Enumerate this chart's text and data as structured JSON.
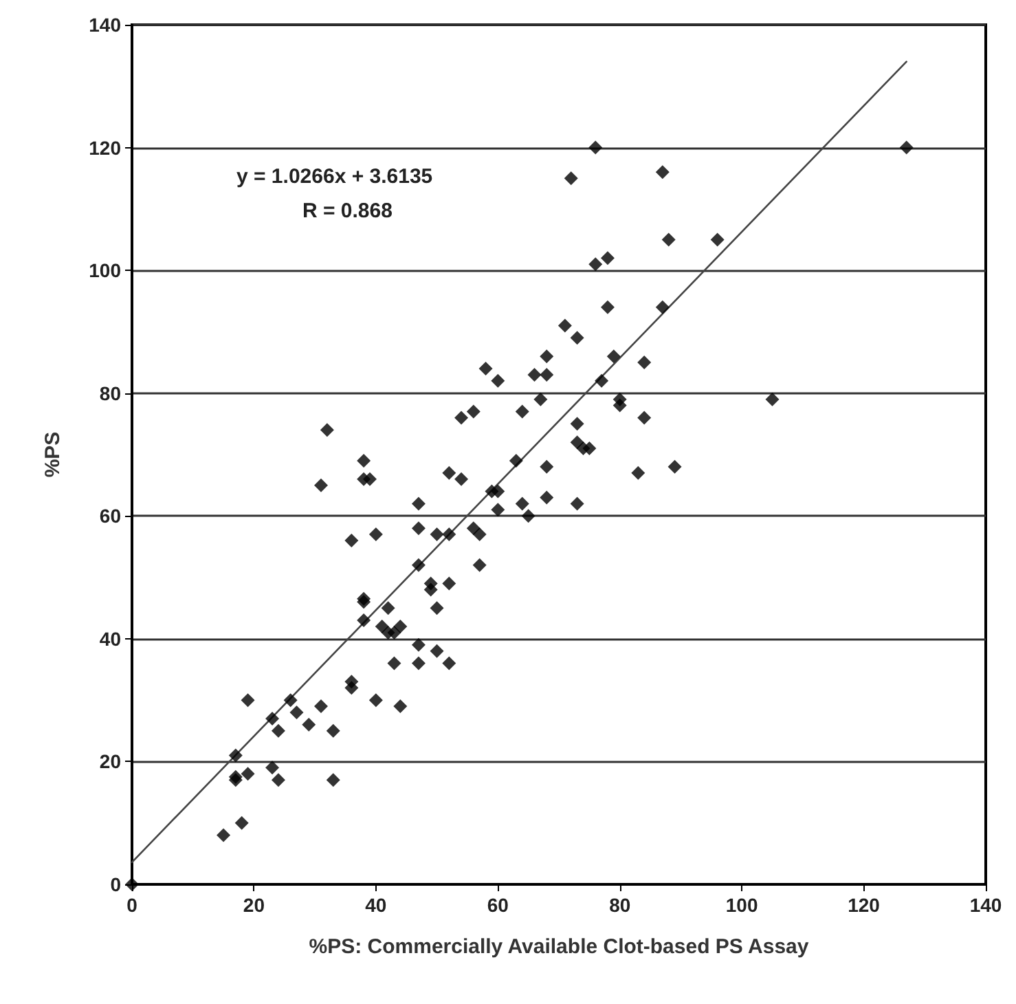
{
  "chart_data": {
    "type": "scatter",
    "xlabel": "%PS: Commercially Available Clot-based PS Assay",
    "ylabel": "%PS",
    "annotations": [
      "y = 1.0266x + 3.6135",
      "R = 0.868"
    ],
    "xlim": [
      0,
      140
    ],
    "xticks": [
      0,
      20,
      40,
      60,
      80,
      100,
      120,
      140
    ],
    "ylim": [
      0,
      140
    ],
    "yticks": [
      0,
      20,
      40,
      60,
      80,
      100,
      120,
      140
    ],
    "grid": "y",
    "series": [
      {
        "color": "#000000",
        "marker": "diamond",
        "x": [
          0,
          15,
          18,
          17,
          17,
          17,
          19,
          19,
          23,
          23,
          24,
          24,
          26,
          27,
          29,
          31,
          33,
          33,
          31,
          32,
          36,
          36,
          36,
          38,
          38,
          38,
          38,
          38,
          39,
          40,
          40,
          41,
          42,
          42,
          43,
          43,
          44,
          44,
          47,
          47,
          47,
          47,
          47,
          49,
          49,
          50,
          50,
          50,
          52,
          52,
          52,
          52,
          54,
          54,
          56,
          56,
          57,
          57,
          58,
          59,
          60,
          60,
          60,
          63,
          64,
          64,
          65,
          66,
          67,
          68,
          68,
          68,
          68,
          71,
          72,
          73,
          73,
          73,
          73,
          74,
          75,
          76,
          76,
          77,
          78,
          78,
          79,
          80,
          80,
          84,
          84,
          83,
          87,
          87,
          88,
          89,
          96,
          105,
          127
        ],
        "values": [
          0,
          8,
          10,
          17,
          17.5,
          21,
          18,
          30,
          19,
          27,
          17,
          25,
          30,
          28,
          26,
          29,
          25,
          17,
          65,
          74,
          56,
          32,
          33,
          43,
          46,
          46.5,
          69,
          66,
          66,
          57,
          30,
          42,
          41,
          45,
          41,
          36,
          42,
          29,
          62,
          58,
          52,
          39,
          36,
          49,
          48,
          57,
          38,
          45,
          67,
          57,
          49,
          36,
          66,
          76,
          77,
          58,
          57,
          52,
          84,
          64,
          64,
          61,
          82,
          69,
          77,
          62,
          60,
          83,
          79,
          86,
          83,
          68,
          63,
          91,
          115,
          89,
          75,
          72,
          62,
          71,
          71,
          120,
          101,
          82,
          102,
          94,
          86,
          79,
          78,
          85,
          76,
          67,
          116,
          94,
          105,
          68,
          105,
          79,
          120
        ]
      },
      {
        "type": "line",
        "color": "#444444",
        "line_style": "solid",
        "marker": "none",
        "x": [
          0,
          127
        ],
        "values": [
          3.6,
          134
        ]
      }
    ]
  }
}
